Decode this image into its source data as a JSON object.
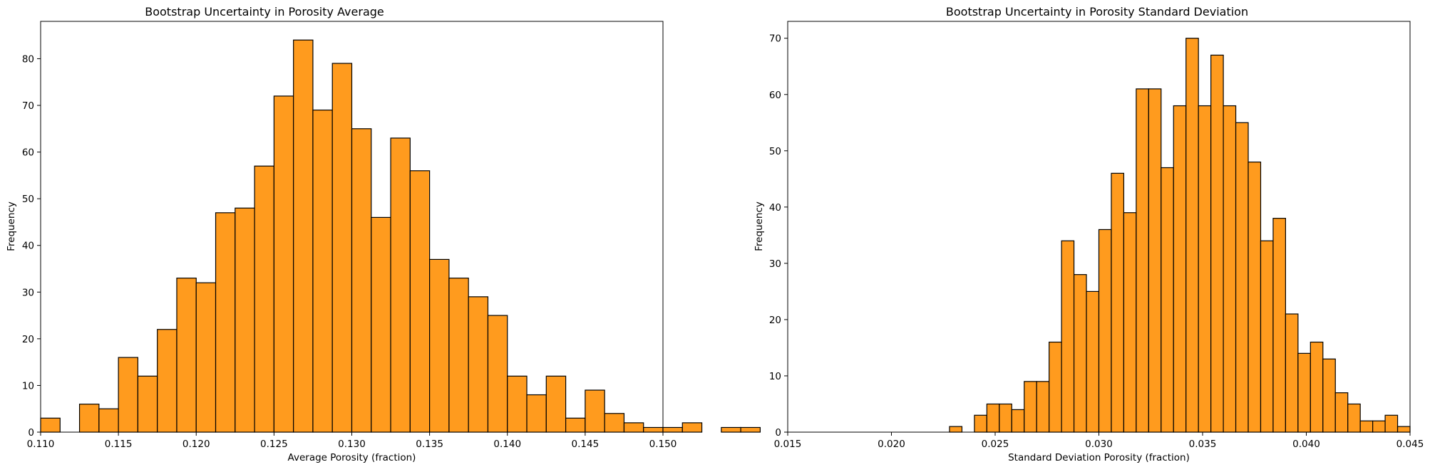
{
  "chart_data": [
    {
      "type": "bar",
      "title": "Bootstrap Uncertainty in Porosity Average",
      "xlabel": "Average Porosity (fraction)",
      "ylabel": "Frequency",
      "xlim": [
        0.11,
        0.15
      ],
      "ylim": [
        0,
        88
      ],
      "xticks": [
        "0.110",
        "0.115",
        "0.120",
        "0.125",
        "0.130",
        "0.135",
        "0.140",
        "0.145",
        "0.150"
      ],
      "yticks": [
        "0",
        "10",
        "20",
        "30",
        "40",
        "50",
        "60",
        "70",
        "80"
      ],
      "bin_start": 0.11,
      "bin_width": 0.00125,
      "values": [
        3,
        0,
        6,
        5,
        16,
        12,
        22,
        33,
        32,
        47,
        48,
        57,
        72,
        84,
        69,
        79,
        65,
        46,
        63,
        56,
        37,
        33,
        29,
        25,
        12,
        8,
        12,
        3,
        9,
        4,
        2,
        1,
        1,
        2,
        0,
        1,
        1
      ],
      "bar_color": "#ff9b1e",
      "edge_color": "#000000",
      "grid": false,
      "legend": "none"
    },
    {
      "type": "bar",
      "title": "Bootstrap Uncertainty in Porosity Standard Deviation",
      "xlabel": "Standard Deviation Porosity (fraction)",
      "ylabel": "Frequency",
      "xlim": [
        0.015,
        0.045
      ],
      "ylim": [
        0,
        73
      ],
      "xticks": [
        "0.015",
        "0.020",
        "0.025",
        "0.030",
        "0.035",
        "0.040",
        "0.045"
      ],
      "yticks": [
        "0",
        "10",
        "20",
        "30",
        "40",
        "50",
        "60",
        "70"
      ],
      "bin_start": 0.0228,
      "bin_width": 0.0006,
      "values": [
        1,
        0,
        3,
        5,
        5,
        4,
        9,
        9,
        16,
        34,
        28,
        25,
        36,
        46,
        39,
        61,
        61,
        47,
        58,
        70,
        58,
        67,
        58,
        55,
        48,
        34,
        38,
        21,
        14,
        16,
        13,
        7,
        5,
        2,
        2,
        3,
        1
      ],
      "bar_color": "#ff9b1e",
      "edge_color": "#000000",
      "grid": false,
      "legend": "none"
    }
  ]
}
